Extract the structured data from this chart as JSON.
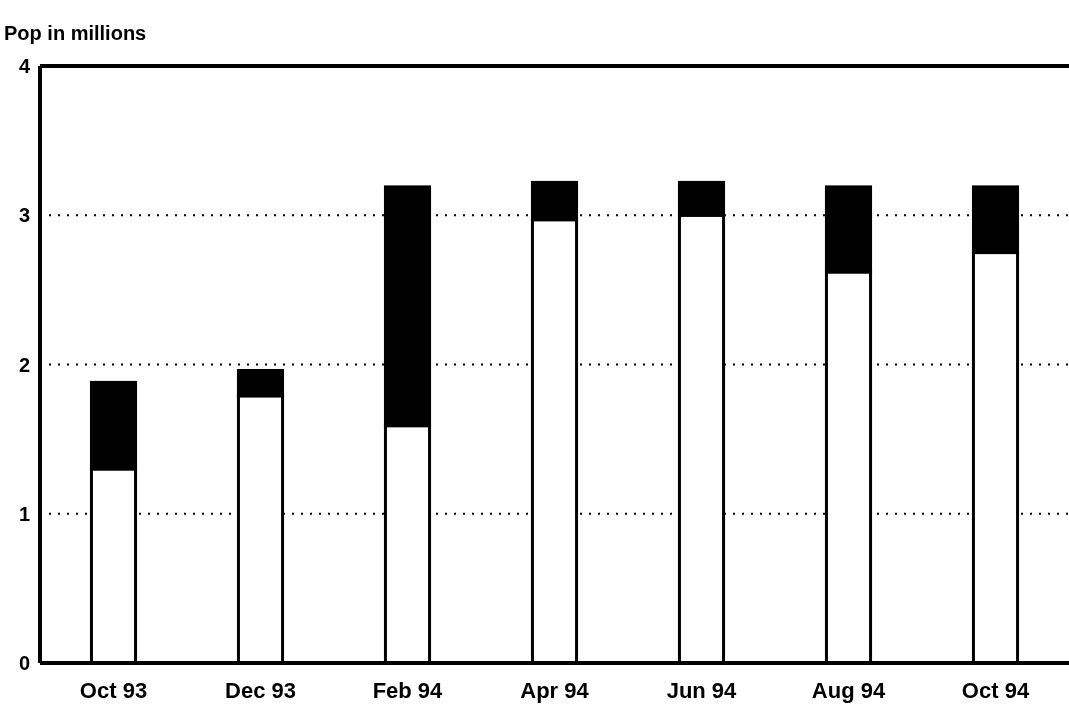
{
  "chart_data": {
    "type": "bar",
    "ylabel": "Pop in millions",
    "categories": [
      "Oct 93",
      "Dec 93",
      "Feb 94",
      "Apr 94",
      "Jun 94",
      "Aug 94",
      "Oct 94"
    ],
    "stacked": true,
    "series": [
      {
        "color": "#ffffff",
        "values": [
          1.3,
          1.79,
          1.59,
          2.97,
          3.0,
          2.62,
          2.75
        ]
      },
      {
        "color": "#000000",
        "values": [
          0.58,
          0.17,
          1.6,
          0.25,
          0.22,
          0.57,
          0.44
        ]
      }
    ],
    "ylim": [
      0,
      4
    ],
    "yticks": [
      0,
      1,
      2,
      3,
      4
    ],
    "grid": "y"
  }
}
